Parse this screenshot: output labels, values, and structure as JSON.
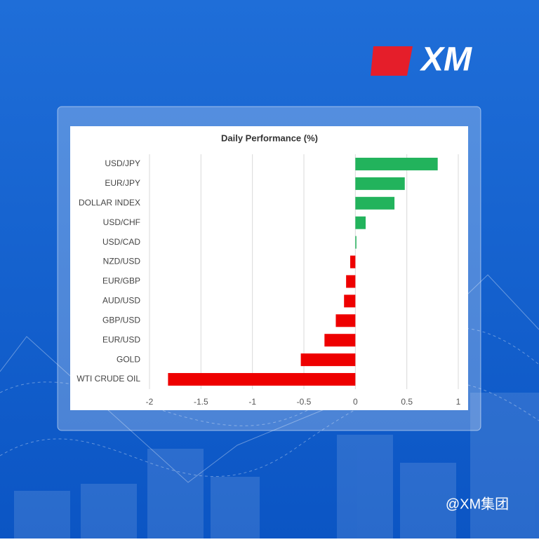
{
  "logo": "XM",
  "watermark": "@XM集团",
  "chart_data": {
    "type": "bar",
    "orientation": "horizontal",
    "title": "Daily Performance (%)",
    "categories": [
      "USD/JPY",
      "EUR/JPY",
      "DOLLAR INDEX",
      "USD/CHF",
      "USD/CAD",
      "NZD/USD",
      "EUR/GBP",
      "AUD/USD",
      "GBP/USD",
      "EUR/USD",
      "GOLD",
      "WTI CRUDE OIL"
    ],
    "values": [
      0.8,
      0.48,
      0.38,
      0.1,
      0.01,
      -0.05,
      -0.09,
      -0.11,
      -0.19,
      -0.3,
      -0.53,
      -1.82
    ],
    "positive_color": "#22b35c",
    "negative_color": "#ee0000",
    "xlim": [
      -2,
      1
    ],
    "xticks": [
      -2,
      -1.5,
      -1,
      -0.5,
      0,
      0.5,
      1
    ],
    "grid": true
  }
}
